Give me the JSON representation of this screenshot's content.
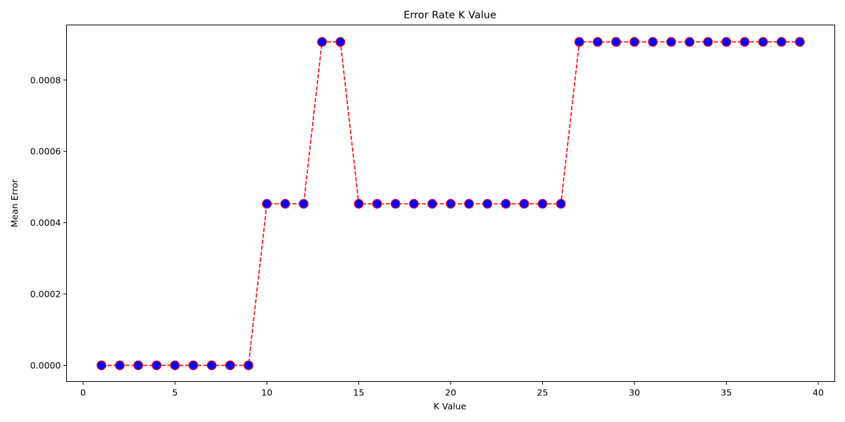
{
  "chart_data": {
    "type": "line",
    "title": "Error Rate K Value",
    "xlabel": "K Value",
    "ylabel": "Mean Error",
    "xlim": [
      -0.9,
      40.9
    ],
    "ylim": [
      -4.55e-05,
      0.0009545
    ],
    "x_ticks": [
      0,
      5,
      10,
      15,
      20,
      25,
      30,
      35,
      40
    ],
    "x_tick_labels": [
      "0",
      "5",
      "10",
      "15",
      "20",
      "25",
      "30",
      "35",
      "40"
    ],
    "y_ticks": [
      0,
      0.0002,
      0.0004,
      0.0006,
      0.0008
    ],
    "y_tick_labels": [
      "0.0000",
      "0.0002",
      "0.0004",
      "0.0006",
      "0.0008"
    ],
    "grid": false,
    "line_color": "#ff0000",
    "line_style": "dashed",
    "marker": "circle",
    "marker_face_color": "#0000ff",
    "marker_edge_color": "#ff0000",
    "x": [
      1,
      2,
      3,
      4,
      5,
      6,
      7,
      8,
      9,
      10,
      11,
      12,
      13,
      14,
      15,
      16,
      17,
      18,
      19,
      20,
      21,
      22,
      23,
      24,
      25,
      26,
      27,
      28,
      29,
      30,
      31,
      32,
      33,
      34,
      35,
      36,
      37,
      38,
      39
    ],
    "y": [
      0,
      0,
      0,
      0,
      0,
      0,
      0,
      0,
      0,
      0.000453,
      0.000453,
      0.000453,
      0.000907,
      0.000907,
      0.000453,
      0.000453,
      0.000453,
      0.000453,
      0.000453,
      0.000453,
      0.000453,
      0.000453,
      0.000453,
      0.000453,
      0.000453,
      0.000453,
      0.000907,
      0.000907,
      0.000907,
      0.000907,
      0.000907,
      0.000907,
      0.000907,
      0.000907,
      0.000907,
      0.000907,
      0.000907,
      0.000907,
      0.000907
    ]
  }
}
